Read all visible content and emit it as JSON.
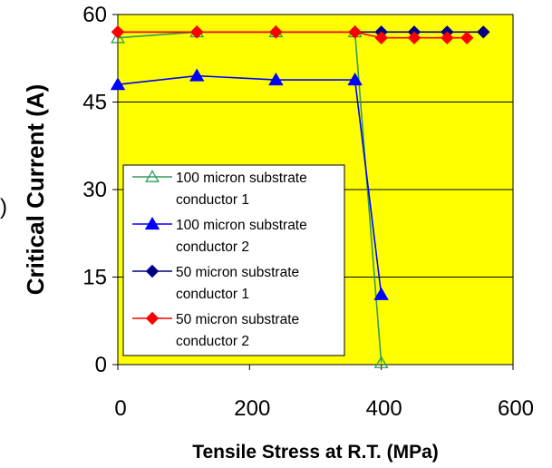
{
  "chart_data": {
    "type": "line",
    "title": "",
    "xlabel": "Tensile Stress at R.T. (MPa)",
    "ylabel": "Critical Current (A)",
    "xlim": [
      0,
      600
    ],
    "ylim": [
      0,
      60
    ],
    "x_ticks": [
      "0",
      "200",
      "400",
      "600"
    ],
    "y_ticks": [
      "0",
      "15",
      "30",
      "45",
      "60"
    ],
    "grid": "horizontal",
    "plot_background": "#FFFF00",
    "legend_position": "left-center",
    "series": [
      {
        "name_lines": [
          "100 micron substrate",
          "conductor 1"
        ],
        "color": "#2E9E5B",
        "marker": "triangle-open",
        "x": [
          0,
          120,
          240,
          360,
          400
        ],
        "y": [
          56,
          57,
          57,
          57,
          0.3
        ]
      },
      {
        "name_lines": [
          "100 micron substrate",
          "conductor 2"
        ],
        "color": "#0000FF",
        "marker": "triangle-filled",
        "x": [
          0,
          120,
          240,
          360,
          400
        ],
        "y": [
          48,
          49.5,
          48.8,
          48.8,
          12
        ]
      },
      {
        "name_lines": [
          "50 micron substrate",
          "conductor 1"
        ],
        "color": "#000080",
        "marker": "diamond-filled",
        "x": [
          0,
          120,
          240,
          360,
          400,
          450,
          500,
          555
        ],
        "y": [
          57,
          57,
          57,
          57,
          57,
          57,
          57,
          57
        ]
      },
      {
        "name_lines": [
          "50 micron substrate",
          "conductor 2"
        ],
        "color": "#FF0000",
        "marker": "diamond-filled",
        "x": [
          0,
          120,
          240,
          360,
          400,
          450,
          500,
          530
        ],
        "y": [
          57,
          57,
          57,
          57,
          56,
          56,
          56,
          56
        ]
      }
    ],
    "edge_fragment": ")"
  }
}
